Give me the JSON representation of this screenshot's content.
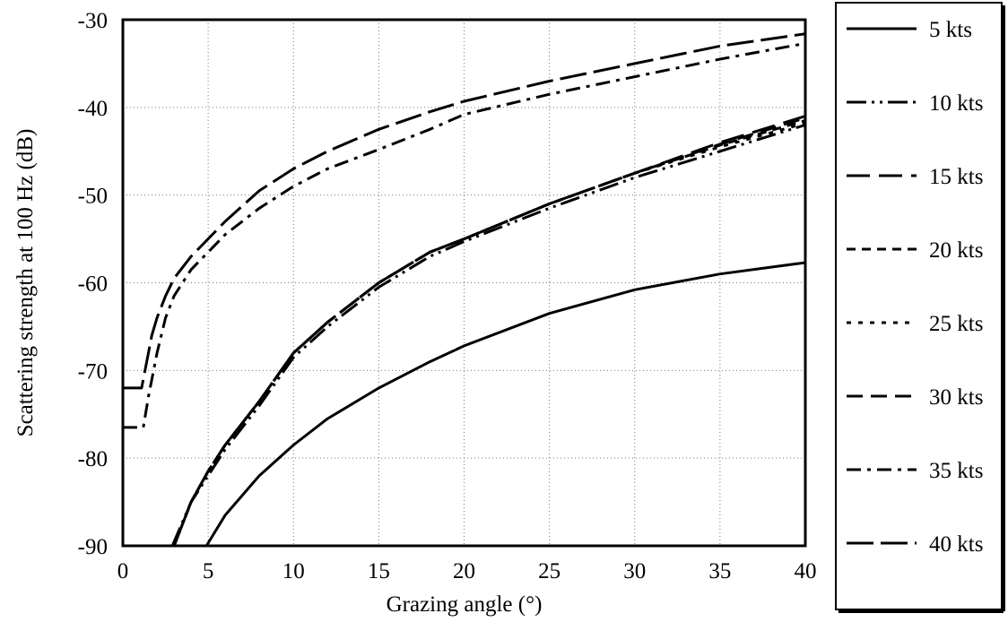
{
  "chart_data": {
    "type": "line",
    "title": "",
    "xlabel": "Grazing angle (°)",
    "ylabel": "Scattering strength at 100 Hz (dB)",
    "xlim": [
      0,
      40
    ],
    "ylim": [
      -90,
      -30
    ],
    "xticks": [
      0,
      5,
      10,
      15,
      20,
      25,
      30,
      35,
      40
    ],
    "xtick_labels": [
      "0",
      "5",
      "10",
      "15",
      "20",
      "25",
      "30",
      "35",
      "40"
    ],
    "yticks": [
      -30,
      -40,
      -50,
      -60,
      -70,
      -80,
      -90
    ],
    "ytick_labels": [
      "-30",
      "-40",
      "-50",
      "-60",
      "-70",
      "-80",
      "-90"
    ],
    "grid": true,
    "legend_position": "right",
    "series": [
      {
        "name": "5 kts",
        "style": "solid",
        "x": [
          4.9,
          6,
          8,
          10,
          12,
          15,
          18,
          20,
          25,
          30,
          35,
          40
        ],
        "y": [
          -90,
          -86.5,
          -82,
          -78.5,
          -75.5,
          -72,
          -69,
          -67.2,
          -63.5,
          -60.8,
          -59,
          -57.7
        ]
      },
      {
        "name": "10 kts",
        "style": "dashdotdot",
        "x": [
          2.9,
          4,
          5,
          6,
          7,
          8,
          10,
          12,
          15,
          18,
          20,
          25,
          30,
          35,
          40
        ],
        "y": [
          -90,
          -85,
          -82,
          -79,
          -76.5,
          -74,
          -68.5,
          -65,
          -60.5,
          -57,
          -55.3,
          -51.5,
          -48,
          -45,
          -42
        ]
      },
      {
        "name": "15 kts",
        "style": "longdash",
        "x": [
          3,
          4,
          5,
          6,
          7,
          8,
          10,
          12,
          15,
          18,
          20,
          25,
          30,
          35,
          40
        ],
        "y": [
          -90,
          -85,
          -81.5,
          -78.5,
          -76,
          -73.5,
          -68,
          -64.5,
          -60,
          -56.5,
          -55,
          -51,
          -47.5,
          -44,
          -41
        ]
      },
      {
        "name": "20 kts",
        "style": "shortdash",
        "x": [
          3,
          4,
          5,
          6,
          7,
          8,
          10,
          12,
          15,
          18,
          20,
          25,
          30,
          35,
          40
        ],
        "y": [
          -90,
          -85,
          -81.5,
          -78.5,
          -76,
          -73.5,
          -68,
          -64.5,
          -60,
          -56.5,
          -55,
          -51,
          -47.5,
          -44.3,
          -41.5
        ]
      },
      {
        "name": "25 kts",
        "style": "dotted",
        "x": [
          3,
          4,
          5,
          6,
          7,
          8,
          10,
          12,
          15,
          18,
          20,
          25,
          30,
          35,
          40
        ],
        "y": [
          -90,
          -85,
          -81.5,
          -78.5,
          -76,
          -73.5,
          -68,
          -64.5,
          -60,
          -56.5,
          -55,
          -51,
          -47.5,
          -44.5,
          -41.8
        ]
      },
      {
        "name": "30 kts",
        "style": "dash",
        "x": [
          3,
          4,
          5,
          6,
          7,
          8,
          10,
          12,
          15,
          18,
          20,
          25,
          30,
          35,
          40
        ],
        "y": [
          -90,
          -85,
          -81.5,
          -78.5,
          -76,
          -73.5,
          -68,
          -64.5,
          -60,
          -56.5,
          -55,
          -51,
          -47.5,
          -44.2,
          -41.2
        ]
      },
      {
        "name": "35 kts",
        "style": "dashdot",
        "x": [
          0,
          1.2,
          1.5,
          2,
          2.5,
          3,
          4,
          5,
          6,
          8,
          10,
          12,
          15,
          18,
          20,
          25,
          30,
          35,
          40
        ],
        "y": [
          -76.5,
          -76.5,
          -73,
          -68,
          -64,
          -61.5,
          -58.5,
          -56.5,
          -54.5,
          -51.5,
          -49,
          -47,
          -44.8,
          -42.5,
          -40.8,
          -38.5,
          -36.5,
          -34.5,
          -32.7
        ]
      },
      {
        "name": "40 kts",
        "style": "longlongdash",
        "x": [
          0,
          1.1,
          1.4,
          1.7,
          2,
          2.5,
          3,
          4,
          5,
          6,
          8,
          10,
          12,
          15,
          18,
          20,
          25,
          30,
          35,
          40
        ],
        "y": [
          -72,
          -72,
          -69,
          -66,
          -64,
          -61.5,
          -59.5,
          -57,
          -55,
          -53,
          -49.5,
          -47,
          -45,
          -42.5,
          -40.5,
          -39.3,
          -37,
          -35,
          -33,
          -31.6
        ]
      }
    ]
  }
}
